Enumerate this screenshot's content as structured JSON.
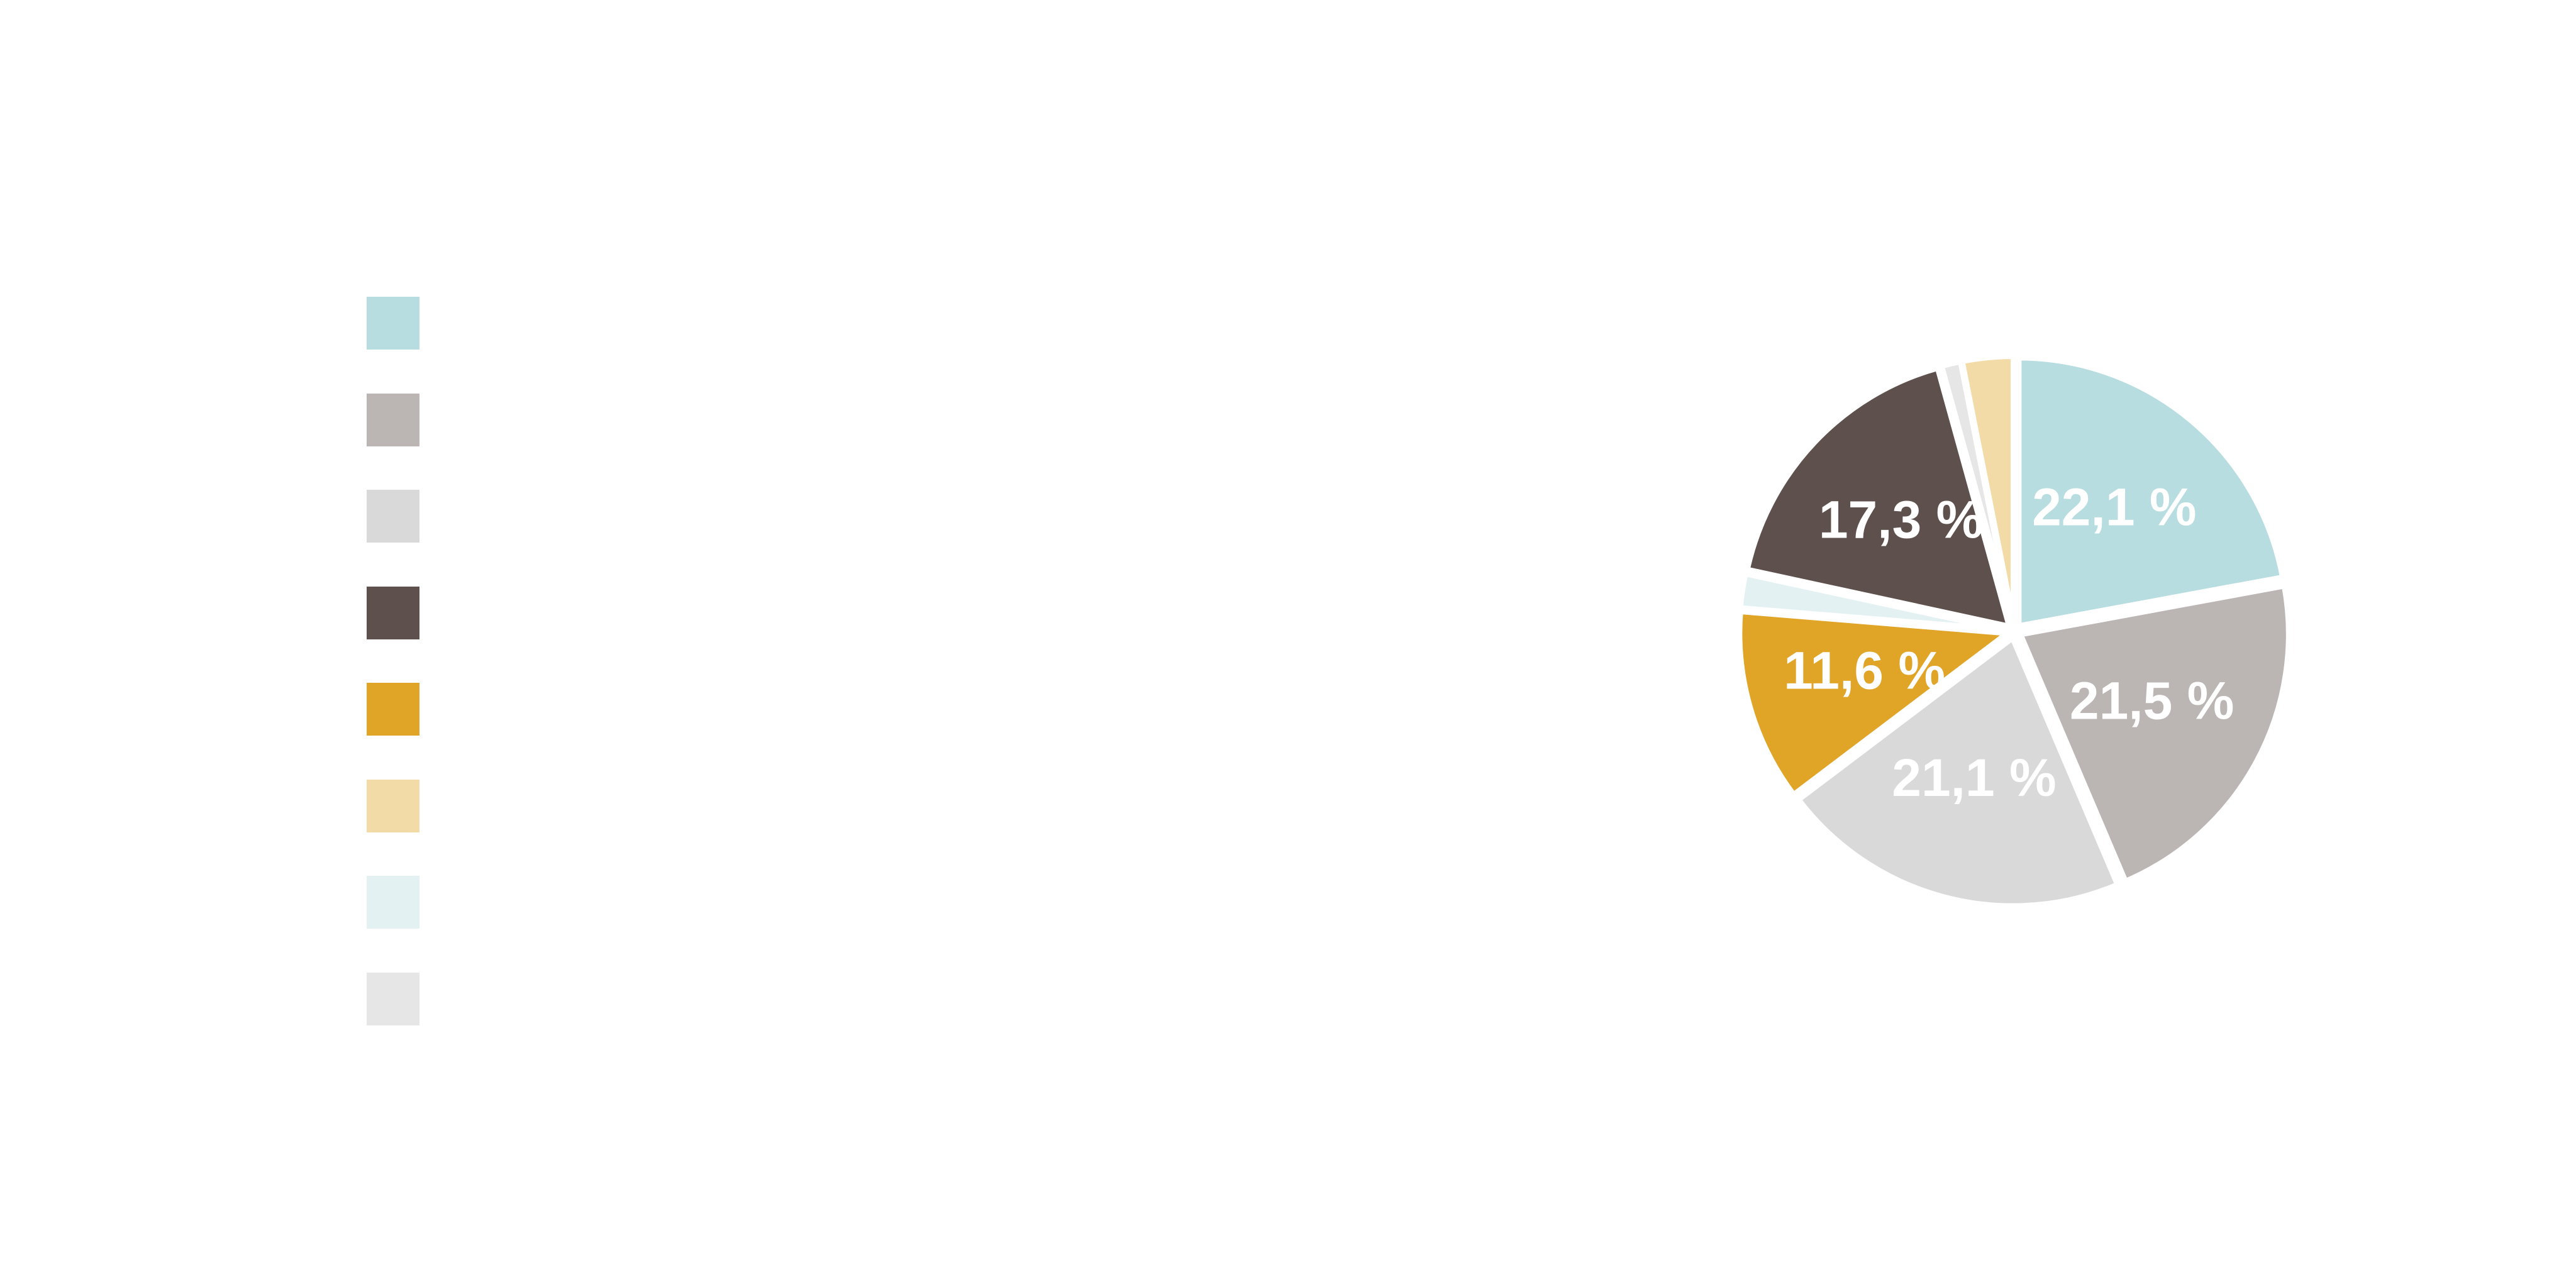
{
  "chart_data": {
    "type": "pie",
    "slices": [
      {
        "value": 22.1,
        "label": "22,1 %",
        "color": "#b7dde0"
      },
      {
        "value": 21.5,
        "label": "21,5 %",
        "color": "#bbb5b3"
      },
      {
        "value": 21.1,
        "label": "21,1 %",
        "color": "#d9d9d9"
      },
      {
        "value": 11.6,
        "label": "11,6 %",
        "color": "#e0a427"
      },
      {
        "value": 2.1,
        "label": "",
        "color": "#e3f1f2"
      },
      {
        "value": 17.3,
        "label": "17,3 %",
        "color": "#5e504c"
      },
      {
        "value": 1.2,
        "label": "",
        "color": "#e6e6e6"
      },
      {
        "value": 3.1,
        "label": "",
        "color": "#f3dba8"
      }
    ],
    "legend_colors": [
      "#b7dde0",
      "#bbb5b3",
      "#d9d9d9",
      "#5e504c",
      "#e0a427",
      "#f3dba8",
      "#e3f1f2",
      "#e6e6e6"
    ],
    "legend_placement": "left",
    "start_angle_deg": 0,
    "direction": "clockwise"
  }
}
